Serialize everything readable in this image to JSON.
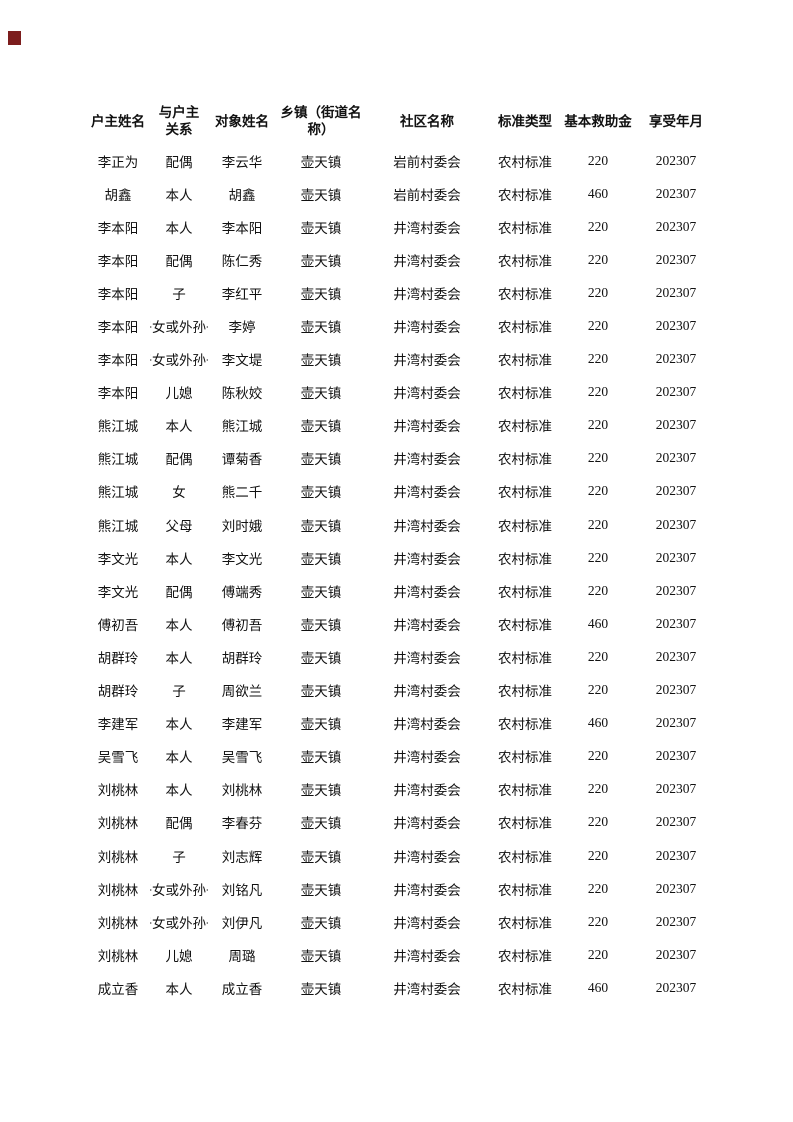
{
  "page": {
    "background": "#ffffff",
    "text_color": "#111111",
    "corner_mark_color": "#7c1d1d"
  },
  "table": {
    "columns": [
      {
        "key": "household_head",
        "label": "户主姓名"
      },
      {
        "key": "relation",
        "label": "与户主\n关系"
      },
      {
        "key": "person_name",
        "label": "对象姓名"
      },
      {
        "key": "township",
        "label": "乡镇（街道名\n称）"
      },
      {
        "key": "community",
        "label": "社区名称"
      },
      {
        "key": "standard_type",
        "label": "标准类型"
      },
      {
        "key": "base_amount",
        "label": "基本救助金"
      },
      {
        "key": "benefit_month",
        "label": "享受年月"
      }
    ],
    "rows": [
      [
        "李正为",
        "配偶",
        "李云华",
        "壶天镇",
        "岩前村委会",
        "农村标准",
        "220",
        "202307"
      ],
      [
        "胡鑫",
        "本人",
        "胡鑫",
        "壶天镇",
        "岩前村委会",
        "农村标准",
        "460",
        "202307"
      ],
      [
        "李本阳",
        "本人",
        "李本阳",
        "壶天镇",
        "井湾村委会",
        "农村标准",
        "220",
        "202307"
      ],
      [
        "李本阳",
        "配偶",
        "陈仁秀",
        "壶天镇",
        "井湾村委会",
        "农村标准",
        "220",
        "202307"
      ],
      [
        "李本阳",
        "子",
        "李红平",
        "壶天镇",
        "井湾村委会",
        "农村标准",
        "220",
        "202307"
      ],
      [
        "李本阳",
        "孙子女或外孙子女",
        "李婷",
        "壶天镇",
        "井湾村委会",
        "农村标准",
        "220",
        "202307"
      ],
      [
        "李本阳",
        "孙子女或外孙子女",
        "李文堤",
        "壶天镇",
        "井湾村委会",
        "农村标准",
        "220",
        "202307"
      ],
      [
        "李本阳",
        "儿媳",
        "陈秋姣",
        "壶天镇",
        "井湾村委会",
        "农村标准",
        "220",
        "202307"
      ],
      [
        "熊江城",
        "本人",
        "熊江城",
        "壶天镇",
        "井湾村委会",
        "农村标准",
        "220",
        "202307"
      ],
      [
        "熊江城",
        "配偶",
        "谭菊香",
        "壶天镇",
        "井湾村委会",
        "农村标准",
        "220",
        "202307"
      ],
      [
        "熊江城",
        "女",
        "熊二千",
        "壶天镇",
        "井湾村委会",
        "农村标准",
        "220",
        "202307"
      ],
      [
        "熊江城",
        "父母",
        "刘时娥",
        "壶天镇",
        "井湾村委会",
        "农村标准",
        "220",
        "202307"
      ],
      [
        "李文光",
        "本人",
        "李文光",
        "壶天镇",
        "井湾村委会",
        "农村标准",
        "220",
        "202307"
      ],
      [
        "李文光",
        "配偶",
        "傅端秀",
        "壶天镇",
        "井湾村委会",
        "农村标准",
        "220",
        "202307"
      ],
      [
        "傅初吾",
        "本人",
        "傅初吾",
        "壶天镇",
        "井湾村委会",
        "农村标准",
        "460",
        "202307"
      ],
      [
        "胡群玲",
        "本人",
        "胡群玲",
        "壶天镇",
        "井湾村委会",
        "农村标准",
        "220",
        "202307"
      ],
      [
        "胡群玲",
        "子",
        "周欲兰",
        "壶天镇",
        "井湾村委会",
        "农村标准",
        "220",
        "202307"
      ],
      [
        "李建军",
        "本人",
        "李建军",
        "壶天镇",
        "井湾村委会",
        "农村标准",
        "460",
        "202307"
      ],
      [
        "吴雪飞",
        "本人",
        "吴雪飞",
        "壶天镇",
        "井湾村委会",
        "农村标准",
        "220",
        "202307"
      ],
      [
        "刘桃林",
        "本人",
        "刘桃林",
        "壶天镇",
        "井湾村委会",
        "农村标准",
        "220",
        "202307"
      ],
      [
        "刘桃林",
        "配偶",
        "李春芬",
        "壶天镇",
        "井湾村委会",
        "农村标准",
        "220",
        "202307"
      ],
      [
        "刘桃林",
        "子",
        "刘志辉",
        "壶天镇",
        "井湾村委会",
        "农村标准",
        "220",
        "202307"
      ],
      [
        "刘桃林",
        "孙子女或外孙子女",
        "刘铭凡",
        "壶天镇",
        "井湾村委会",
        "农村标准",
        "220",
        "202307"
      ],
      [
        "刘桃林",
        "孙子女或外孙子女",
        "刘伊凡",
        "壶天镇",
        "井湾村委会",
        "农村标准",
        "220",
        "202307"
      ],
      [
        "刘桃林",
        "儿媳",
        "周璐",
        "壶天镇",
        "井湾村委会",
        "农村标准",
        "220",
        "202307"
      ],
      [
        "成立香",
        "本人",
        "成立香",
        "壶天镇",
        "井湾村委会",
        "农村标准",
        "460",
        "202307"
      ]
    ]
  }
}
